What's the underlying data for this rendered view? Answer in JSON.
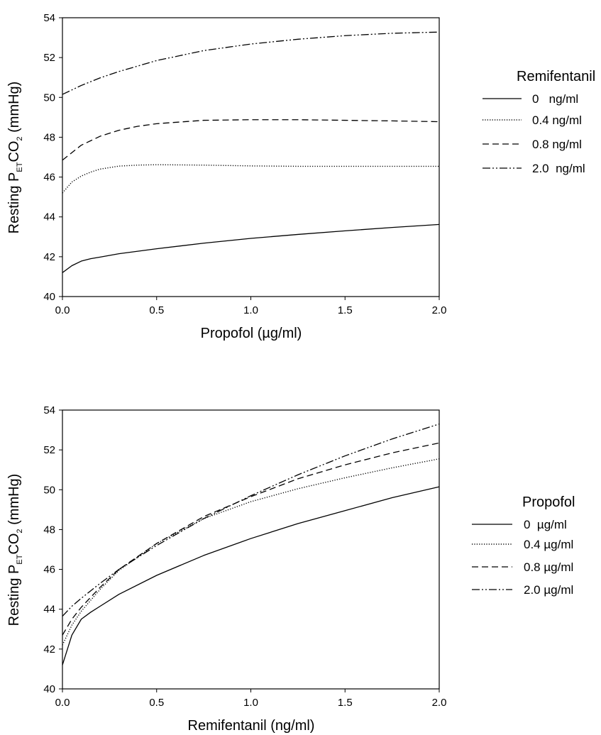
{
  "chart_data": [
    {
      "type": "line",
      "xlabel": "Propofol (µg/ml)",
      "ylabel": {
        "prefix": "Resting P",
        "sub1": "ET",
        "mid": "CO",
        "sub2": "2",
        "suffix": " (mmHg)"
      },
      "xlim": [
        0.0,
        2.0
      ],
      "ylim": [
        40,
        54
      ],
      "xticks": [
        "0.0",
        "0.5",
        "1.0",
        "1.5",
        "2.0"
      ],
      "yticks": [
        "40",
        "42",
        "44",
        "46",
        "48",
        "50",
        "52",
        "54"
      ],
      "grid": false,
      "legend_title": "Remifentanil",
      "legend_placement": "right",
      "series": [
        {
          "name": "0   ng/ml",
          "style": "solid",
          "x": [
            0.0,
            0.05,
            0.1,
            0.15,
            0.2,
            0.3,
            0.5,
            0.75,
            1.0,
            1.25,
            1.5,
            1.75,
            2.0
          ],
          "y": [
            41.2,
            41.55,
            41.78,
            41.9,
            41.98,
            42.15,
            42.4,
            42.68,
            42.92,
            43.12,
            43.3,
            43.47,
            43.62
          ]
        },
        {
          "name": "0.4 ng/ml",
          "style": "dotted",
          "x": [
            0.0,
            0.05,
            0.1,
            0.15,
            0.2,
            0.3,
            0.4,
            0.5,
            0.75,
            1.0,
            1.25,
            1.5,
            1.75,
            2.0
          ],
          "y": [
            45.2,
            45.75,
            46.05,
            46.25,
            46.4,
            46.55,
            46.6,
            46.62,
            46.6,
            46.56,
            46.54,
            46.54,
            46.54,
            46.54
          ]
        },
        {
          "name": "0.8 ng/ml",
          "style": "dashed",
          "x": [
            0.0,
            0.1,
            0.2,
            0.3,
            0.4,
            0.5,
            0.75,
            1.0,
            1.25,
            1.5,
            1.75,
            2.0
          ],
          "y": [
            46.85,
            47.6,
            48.05,
            48.35,
            48.55,
            48.68,
            48.85,
            48.88,
            48.88,
            48.85,
            48.82,
            48.78
          ]
        },
        {
          "name": "2.0  ng/ml",
          "style": "dashdotdot",
          "x": [
            0.0,
            0.1,
            0.2,
            0.3,
            0.5,
            0.75,
            1.0,
            1.25,
            1.5,
            1.75,
            2.0
          ],
          "y": [
            50.15,
            50.6,
            50.98,
            51.3,
            51.85,
            52.35,
            52.68,
            52.92,
            53.1,
            53.22,
            53.28
          ]
        }
      ]
    },
    {
      "type": "line",
      "xlabel": "Remifentanil (ng/ml)",
      "ylabel": {
        "prefix": "Resting P",
        "sub1": "ET",
        "mid": "CO",
        "sub2": "2",
        "suffix": " (mmHg)"
      },
      "xlim": [
        0.0,
        2.0
      ],
      "ylim": [
        40,
        54
      ],
      "xticks": [
        "0.0",
        "0.5",
        "1.0",
        "1.5",
        "2.0"
      ],
      "yticks": [
        "40",
        "42",
        "44",
        "46",
        "48",
        "50",
        "52",
        "54"
      ],
      "grid": false,
      "legend_title": "Propofol",
      "legend_placement": "right",
      "series": [
        {
          "name": "0  µg/ml",
          "style": "solid",
          "x": [
            0.0,
            0.05,
            0.1,
            0.15,
            0.2,
            0.3,
            0.5,
            0.75,
            1.0,
            1.25,
            1.5,
            1.75,
            2.0
          ],
          "y": [
            41.2,
            42.7,
            43.5,
            43.85,
            44.15,
            44.75,
            45.7,
            46.7,
            47.55,
            48.3,
            48.95,
            49.6,
            50.15
          ]
        },
        {
          "name": "0.4 µg/ml",
          "style": "dotted",
          "x": [
            0.0,
            0.05,
            0.1,
            0.2,
            0.3,
            0.5,
            0.75,
            1.0,
            1.25,
            1.5,
            1.75,
            2.0
          ],
          "y": [
            42.2,
            43.2,
            43.9,
            45.0,
            45.95,
            47.3,
            48.55,
            49.4,
            50.05,
            50.6,
            51.1,
            51.55
          ]
        },
        {
          "name": "0.8 µg/ml",
          "style": "dashed",
          "x": [
            0.0,
            0.05,
            0.1,
            0.2,
            0.3,
            0.5,
            0.75,
            1.0,
            1.25,
            1.5,
            1.75,
            2.0
          ],
          "y": [
            42.7,
            43.5,
            44.1,
            45.1,
            46.0,
            47.3,
            48.65,
            49.65,
            50.55,
            51.25,
            51.85,
            52.35
          ]
        },
        {
          "name": "2.0 µg/ml",
          "style": "dashdotdot",
          "x": [
            0.0,
            0.05,
            0.1,
            0.2,
            0.3,
            0.5,
            0.75,
            1.0,
            1.25,
            1.5,
            1.75,
            2.0
          ],
          "y": [
            43.65,
            44.15,
            44.55,
            45.3,
            46.0,
            47.2,
            48.55,
            49.7,
            50.75,
            51.7,
            52.55,
            53.3
          ]
        }
      ]
    }
  ]
}
